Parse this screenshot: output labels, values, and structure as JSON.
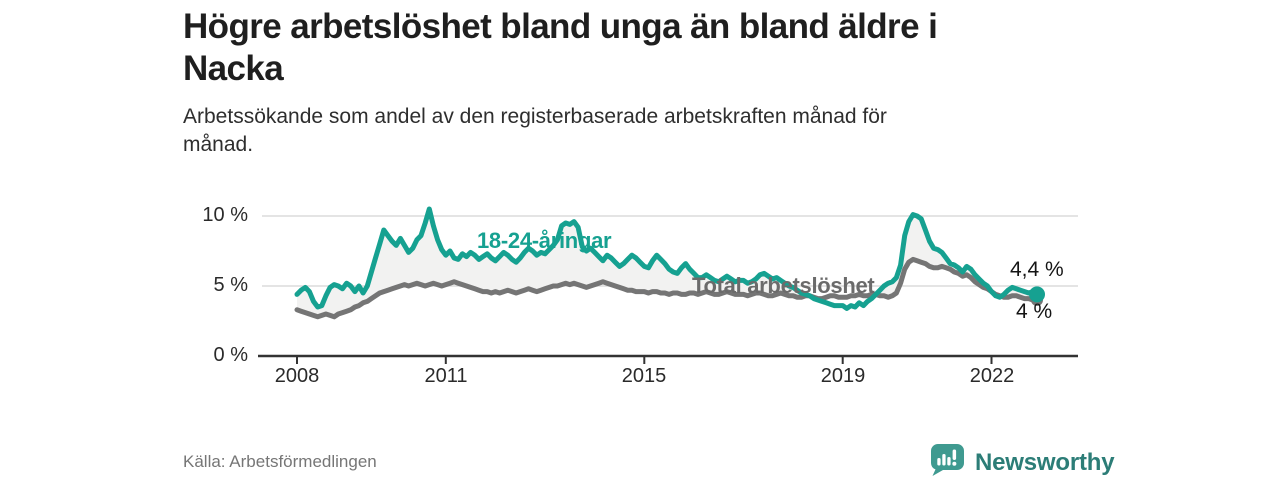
{
  "title": {
    "text": "Högre arbetslöshet bland unga än bland äldre i Nacka",
    "lines": [
      "Högre arbetslöshet bland unga än bland äldre i",
      "Nacka"
    ]
  },
  "subtitle": {
    "text": "Arbetssökande som andel av den registerbaserade arbetskraften månad för månad.",
    "lines": [
      "Arbetssökande som andel av den registerbaserade arbetskraften månad för",
      "månad."
    ]
  },
  "source": "Källa: Arbetsförmedlingen",
  "branding": {
    "name": "Newsworthy",
    "icon": "newsworthy-speech-bubble-chart-icon",
    "text_color": "#2c7d77",
    "icon_color": "#3f9a90"
  },
  "colors": {
    "young_line": "#16a191",
    "total_line": "#757575",
    "band_fill": "#f2f2f1",
    "gridline": "#dcdcdc",
    "axis": "#333333",
    "value_label": "#141414"
  },
  "chart_data": {
    "type": "line",
    "unit": "%",
    "interval": "monthly",
    "x_start": "2008-01",
    "x_end": "2022-12",
    "x_ticks": [
      "2008",
      "2011",
      "2015",
      "2019",
      "2022"
    ],
    "x_tick_years": [
      2008,
      2011,
      2015,
      2019,
      2022
    ],
    "y_ticks": [
      "10 %",
      "5 %",
      "0 %"
    ],
    "y_tick_values": [
      10,
      5,
      0
    ],
    "ylim": [
      0,
      11
    ],
    "grid": "horizontal",
    "legend_position": "inline-labels",
    "series": [
      {
        "name": "18-24-åringar",
        "color": "#16a191",
        "end_value_label": "4,4 %",
        "end_value": 4.4,
        "values": [
          4.4,
          4.7,
          4.9,
          4.6,
          3.9,
          3.5,
          3.6,
          4.3,
          4.9,
          5.1,
          5.0,
          4.8,
          5.2,
          5.0,
          4.6,
          5.0,
          4.5,
          5.0,
          6.0,
          7.0,
          8.0,
          9.0,
          8.6,
          8.2,
          7.9,
          8.4,
          7.9,
          7.4,
          7.7,
          8.3,
          8.6,
          9.5,
          10.5,
          9.3,
          8.3,
          7.6,
          7.2,
          7.5,
          7.0,
          6.9,
          7.3,
          7.1,
          7.4,
          7.2,
          6.9,
          7.1,
          7.3,
          7.0,
          6.8,
          7.1,
          7.4,
          7.2,
          6.9,
          6.7,
          7.0,
          7.4,
          7.7,
          7.5,
          7.2,
          7.4,
          7.3,
          7.6,
          7.9,
          8.3,
          9.3,
          9.5,
          9.4,
          9.6,
          9.2,
          7.8,
          7.5,
          7.7,
          7.4,
          7.1,
          6.8,
          7.2,
          7.0,
          6.7,
          6.4,
          6.6,
          6.9,
          7.2,
          7.0,
          6.7,
          6.4,
          6.3,
          6.8,
          7.2,
          6.9,
          6.6,
          6.2,
          6.0,
          5.9,
          6.3,
          6.6,
          6.2,
          5.9,
          5.6,
          5.6,
          5.8,
          5.6,
          5.4,
          5.3,
          5.5,
          5.7,
          5.5,
          5.3,
          5.4,
          5.4,
          5.2,
          5.3,
          5.5,
          5.8,
          5.9,
          5.7,
          5.5,
          5.6,
          5.4,
          5.2,
          5.0,
          4.9,
          4.7,
          4.5,
          4.4,
          4.3,
          4.1,
          4.0,
          3.9,
          3.8,
          3.7,
          3.6,
          3.6,
          3.6,
          3.4,
          3.6,
          3.5,
          3.8,
          3.6,
          3.9,
          4.1,
          4.4,
          4.7,
          5.0,
          5.2,
          5.3,
          5.6,
          6.5,
          8.6,
          9.6,
          10.1,
          10.0,
          9.8,
          9.0,
          8.2,
          7.7,
          7.6,
          7.4,
          7.0,
          6.6,
          6.5,
          6.3,
          6.0,
          6.4,
          6.2,
          5.8,
          5.5,
          5.2,
          5.0,
          4.6,
          4.3,
          4.2,
          4.4,
          4.7,
          4.9,
          4.8,
          4.7,
          4.6,
          4.5,
          4.6,
          4.4
        ]
      },
      {
        "name": "Total arbetslöshet",
        "color": "#757575",
        "end_value_label": "4 %",
        "end_value": 4.0,
        "values": [
          3.3,
          3.2,
          3.1,
          3.0,
          2.9,
          2.8,
          2.9,
          3.0,
          2.9,
          2.8,
          3.0,
          3.1,
          3.2,
          3.3,
          3.5,
          3.6,
          3.8,
          3.9,
          4.1,
          4.3,
          4.5,
          4.6,
          4.7,
          4.8,
          4.9,
          5.0,
          5.1,
          5.0,
          5.1,
          5.2,
          5.1,
          5.0,
          5.1,
          5.2,
          5.1,
          5.0,
          5.1,
          5.2,
          5.3,
          5.2,
          5.1,
          5.0,
          4.9,
          4.8,
          4.7,
          4.6,
          4.6,
          4.5,
          4.6,
          4.5,
          4.6,
          4.7,
          4.6,
          4.5,
          4.6,
          4.7,
          4.8,
          4.7,
          4.6,
          4.7,
          4.8,
          4.9,
          5.0,
          5.0,
          5.1,
          5.2,
          5.1,
          5.2,
          5.1,
          5.0,
          4.9,
          5.0,
          5.1,
          5.2,
          5.3,
          5.2,
          5.1,
          5.0,
          4.9,
          4.8,
          4.7,
          4.7,
          4.6,
          4.6,
          4.6,
          4.5,
          4.6,
          4.6,
          4.5,
          4.5,
          4.4,
          4.5,
          4.5,
          4.4,
          4.4,
          4.5,
          4.5,
          4.4,
          4.5,
          4.6,
          4.5,
          4.4,
          4.4,
          4.5,
          4.6,
          4.5,
          4.4,
          4.4,
          4.4,
          4.3,
          4.4,
          4.5,
          4.5,
          4.4,
          4.3,
          4.3,
          4.4,
          4.5,
          4.4,
          4.3,
          4.3,
          4.2,
          4.2,
          4.3,
          4.3,
          4.2,
          4.1,
          4.1,
          4.2,
          4.3,
          4.3,
          4.2,
          4.2,
          4.2,
          4.3,
          4.3,
          4.4,
          4.3,
          4.3,
          4.4,
          4.4,
          4.3,
          4.3,
          4.2,
          4.3,
          4.5,
          5.2,
          6.2,
          6.7,
          6.9,
          6.8,
          6.7,
          6.6,
          6.4,
          6.3,
          6.3,
          6.4,
          6.3,
          6.2,
          6.0,
          5.9,
          5.7,
          5.8,
          5.6,
          5.3,
          5.1,
          4.9,
          4.8,
          4.6,
          4.4,
          4.3,
          4.2,
          4.2,
          4.3,
          4.3,
          4.2,
          4.1,
          4.1,
          4.0,
          4.0
        ]
      }
    ]
  }
}
